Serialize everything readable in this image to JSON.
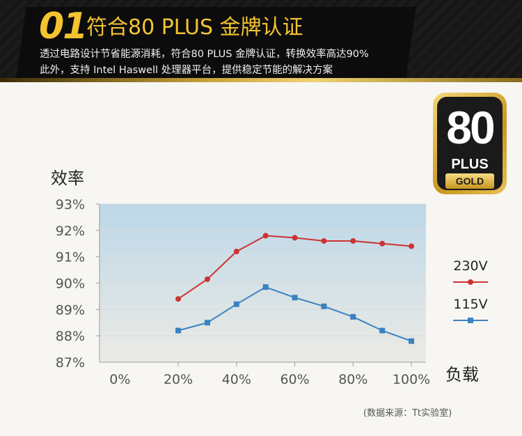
{
  "header": {
    "number": "01",
    "title": "符合80 PLUS 金牌认证",
    "desc_line1": "透过电路设计节省能源消耗，符合80 PLUS 金牌认证，转换效率高达90%",
    "desc_line2": "此外，支持 Intel Haswell 处理器平台，提供稳定节能的解决方案"
  },
  "badge": {
    "number": "80",
    "plus": "PLUS",
    "grade": "GOLD"
  },
  "colors": {
    "accent_gold": "#f4c430",
    "series_230v": "#cc3333",
    "series_115v": "#3a82c0",
    "plot_top": "#bcd7e8",
    "plot_bottom": "#ecebe5"
  },
  "chart_data": {
    "type": "line",
    "title": "",
    "xlabel": "负载",
    "ylabel": "效率",
    "x": [
      20,
      30,
      40,
      50,
      60,
      70,
      80,
      90,
      100
    ],
    "x_tick_labels": [
      "0%",
      "20%",
      "40%",
      "60%",
      "80%",
      "100%"
    ],
    "x_ticks": [
      0,
      20,
      40,
      60,
      80,
      100
    ],
    "y_tick_labels": [
      "87%",
      "88%",
      "89%",
      "90%",
      "91%",
      "92%",
      "93%"
    ],
    "y_ticks": [
      87,
      88,
      89,
      90,
      91,
      92,
      93
    ],
    "xlim": [
      -7,
      105
    ],
    "ylim": [
      87,
      93
    ],
    "series": [
      {
        "name": "230V",
        "marker": "circle",
        "color": "#cc3333",
        "values": [
          89.4,
          90.15,
          91.2,
          91.8,
          91.72,
          91.6,
          91.6,
          91.5,
          91.4
        ]
      },
      {
        "name": "115V",
        "marker": "square",
        "color": "#3a82c0",
        "values": [
          88.2,
          88.5,
          89.2,
          89.85,
          89.45,
          89.12,
          88.72,
          88.2,
          87.8
        ]
      }
    ],
    "grid": true,
    "legend_position": "right"
  },
  "source_note": "(数据来源：Tt实验室)"
}
